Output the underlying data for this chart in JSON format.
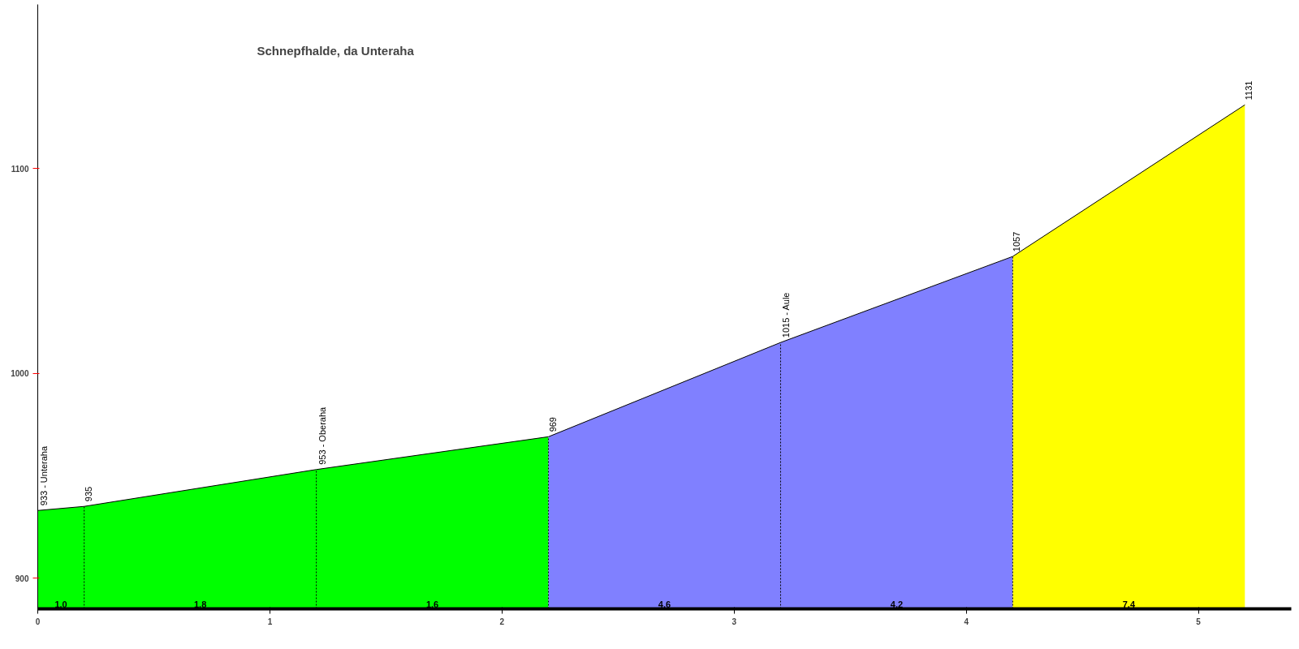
{
  "chart_data": {
    "type": "area",
    "title": "Schnepfhalde, da Unteraha",
    "series": [
      {
        "color": "#00ff00",
        "x": [
          0,
          0.2,
          1.2,
          2.2
        ],
        "values": [
          933,
          935,
          953,
          969
        ],
        "value_labels": [
          "933 - Unteraha",
          "935",
          "953 - Oberaha",
          "969"
        ]
      },
      {
        "color": "#8080ff",
        "x": [
          2.2,
          3.2,
          4.2
        ],
        "values": [
          969,
          1015,
          1057
        ],
        "value_labels": [
          null,
          "1015 - Aule",
          "1057"
        ]
      },
      {
        "color": "#ffff00",
        "x": [
          4.2,
          5.2
        ],
        "values": [
          1057,
          1131
        ],
        "value_labels": [
          null,
          "1131"
        ]
      }
    ],
    "xlim": [
      0,
      5.4
    ],
    "xticks": [
      0,
      1,
      2,
      3,
      4,
      5
    ],
    "ylim": [
      885,
      1180
    ],
    "yticks": [
      900,
      1000,
      1100
    ],
    "grid": false,
    "annotations": [
      "1,0",
      "1,8",
      "1,6",
      "4,6",
      "4,2",
      "7,4"
    ]
  }
}
